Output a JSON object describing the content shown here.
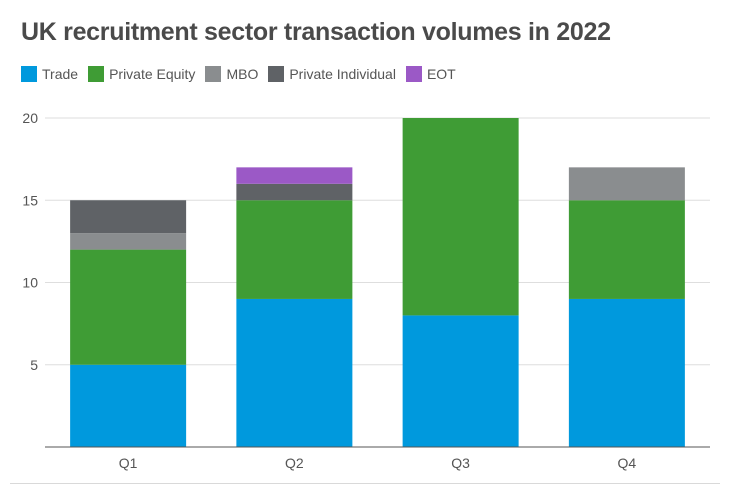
{
  "chart_data": {
    "type": "bar",
    "stacked": true,
    "title": "UK recruitment sector transaction volumes in 2022",
    "xlabel": "",
    "ylabel": "",
    "categories": [
      "Q1",
      "Q2",
      "Q3",
      "Q4"
    ],
    "ylim": [
      0,
      20
    ],
    "yticks": [
      5,
      10,
      15,
      20
    ],
    "grid": true,
    "legend_position": "top-left",
    "series": [
      {
        "name": "Trade",
        "color": "#0099dd",
        "values": [
          5,
          9,
          8,
          9
        ]
      },
      {
        "name": "Private Equity",
        "color": "#3f9c35",
        "values": [
          7,
          6,
          12,
          6
        ]
      },
      {
        "name": "MBO",
        "color": "#8a8d8f",
        "values": [
          1,
          0,
          0,
          2
        ]
      },
      {
        "name": "Private Individual",
        "color": "#5f6266",
        "values": [
          2,
          1,
          0,
          0
        ]
      },
      {
        "name": "EOT",
        "color": "#9b59c6",
        "values": [
          0,
          1,
          0,
          0
        ]
      }
    ]
  }
}
